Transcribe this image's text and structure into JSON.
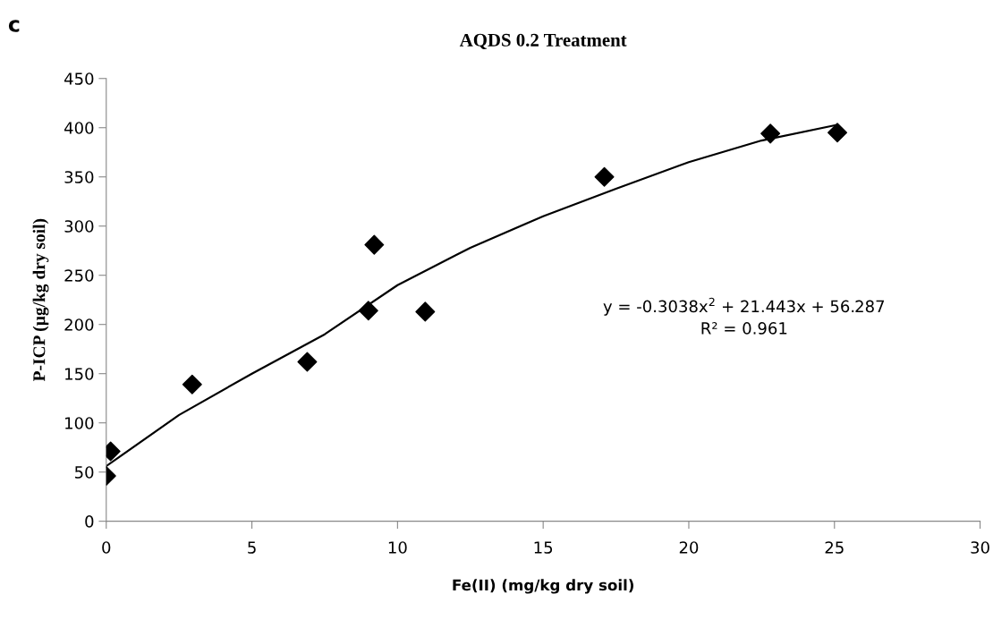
{
  "chart_data": {
    "type": "scatter",
    "title": "AQDS 0.2 Treatment",
    "xlabel": "Fe(II) (mg/kg dry soil)",
    "ylabel": "P-ICP (µg/kg dry soil)",
    "series": [
      {
        "color": "#000000",
        "marker": "diamond",
        "x": [
          0,
          0.15,
          2.95,
          6.9,
          9.0,
          9.2,
          10.95,
          17.1,
          22.8,
          25.1
        ],
        "values": [
          46,
          71,
          139,
          162,
          214,
          281,
          213,
          350,
          394,
          395
        ]
      },
      {
        "type": "line",
        "color": "#000000",
        "marker": "none",
        "line_style": "solid",
        "x": [
          0,
          2.5,
          5,
          7.5,
          10,
          12.5,
          15,
          17.5,
          20,
          22.5,
          25.1
        ],
        "values": [
          56,
          108,
          150,
          190,
          240,
          278,
          310,
          338,
          365,
          387,
          403
        ]
      }
    ],
    "annotations": [
      "c",
      "y = -0.3038x$^{2}$ + 21.443x + 56.287\nR² = 0.961"
    ],
    "xlim": [
      0,
      30
    ],
    "xticks": [
      0,
      5,
      10,
      15,
      20,
      25,
      30
    ],
    "ylim": [
      0,
      450
    ],
    "yticks": [
      0,
      50,
      100,
      150,
      200,
      250,
      300,
      350,
      400,
      450
    ],
    "grid": false,
    "legend": false
  }
}
